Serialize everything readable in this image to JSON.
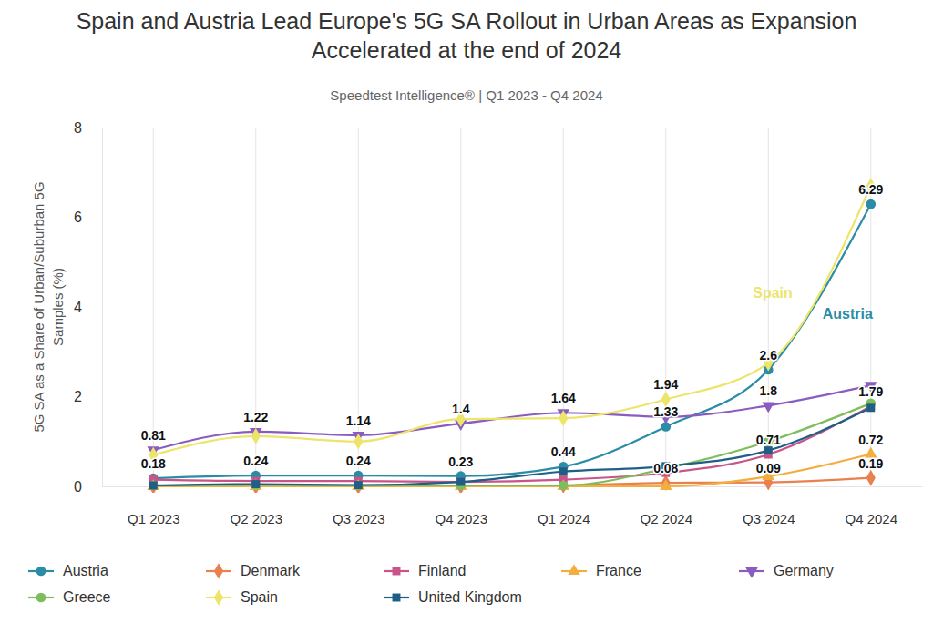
{
  "chart_data": {
    "type": "line",
    "title": "Spain and Austria Lead Europe's 5G SA Rollout in Urban Areas as Expansion Accelerated at the end of 2024",
    "subtitle": "Speedtest Intelligence® | Q1 2023 - Q4 2024",
    "y_label": "5G SA as a Share of Urban/Suburban 5G Samples (%)",
    "categories": [
      "Q1 2023",
      "Q2 2023",
      "Q3 2023",
      "Q4 2023",
      "Q1 2024",
      "Q2 2024",
      "Q3 2024",
      "Q4 2024"
    ],
    "ylim": [
      0,
      8
    ],
    "yticks": [
      0,
      2,
      4,
      6,
      8
    ],
    "grid": "x",
    "legend": "bottom",
    "data_labels": true,
    "annotations": [
      "Spain",
      "Austria"
    ],
    "series": [
      {
        "name": "Austria",
        "color": "#2b8ca6",
        "marker": "circle",
        "values": [
          0.18,
          0.24,
          0.24,
          0.23,
          0.44,
          1.33,
          2.6,
          6.29
        ],
        "data_labels": true,
        "value_labels": [
          "0.18",
          "0.24",
          "0.24",
          "0.23",
          "0.44",
          "1.33",
          "2.6",
          "6.29"
        ]
      },
      {
        "name": "Denmark",
        "color": "#e9804f",
        "marker": "diamond",
        "values": [
          0.0,
          0.0,
          0.0,
          0.0,
          0.02,
          0.08,
          0.09,
          0.19
        ],
        "data_labels": true,
        "value_labels": [
          null,
          null,
          null,
          null,
          null,
          "0.08",
          "0.09",
          "0.19"
        ]
      },
      {
        "name": "Finland",
        "color": "#c9548a",
        "marker": "square",
        "values": [
          0.15,
          0.12,
          0.12,
          0.1,
          0.15,
          0.3,
          0.71,
          1.79
        ],
        "data_labels": true,
        "value_labels": [
          null,
          null,
          null,
          null,
          null,
          null,
          "0.71",
          "1.79"
        ]
      },
      {
        "name": "France",
        "color": "#f4ad3f",
        "marker": "triangle-up",
        "values": [
          0.0,
          0.0,
          0.0,
          0.0,
          0.0,
          0.0,
          0.22,
          0.72
        ],
        "data_labels": true,
        "value_labels": [
          null,
          null,
          null,
          null,
          null,
          null,
          null,
          "0.72"
        ]
      },
      {
        "name": "Germany",
        "color": "#8b5cbf",
        "marker": "triangle-down",
        "values": [
          0.81,
          1.22,
          1.14,
          1.4,
          1.64,
          1.55,
          1.8,
          2.25
        ],
        "data_labels": true,
        "value_labels": [
          "0.81",
          "1.22",
          "1.14",
          "1.4",
          "1.64",
          null,
          "1.8",
          null
        ]
      },
      {
        "name": "Greece",
        "color": "#7fbc5b",
        "marker": "circle",
        "values": [
          0.02,
          0.03,
          0.02,
          0.02,
          0.02,
          0.4,
          1.0,
          1.85
        ]
      },
      {
        "name": "Spain",
        "color": "#ede46a",
        "marker": "diamond",
        "values": [
          0.7,
          1.12,
          1.0,
          1.5,
          1.52,
          1.94,
          2.75,
          6.7
        ],
        "data_labels": true,
        "value_labels": [
          null,
          null,
          null,
          null,
          null,
          "1.94",
          null,
          null
        ]
      },
      {
        "name": "United Kingdom",
        "color": "#1f5f86",
        "marker": "square",
        "values": [
          0.02,
          0.05,
          0.03,
          0.1,
          0.33,
          0.45,
          0.8,
          1.75
        ]
      }
    ]
  }
}
